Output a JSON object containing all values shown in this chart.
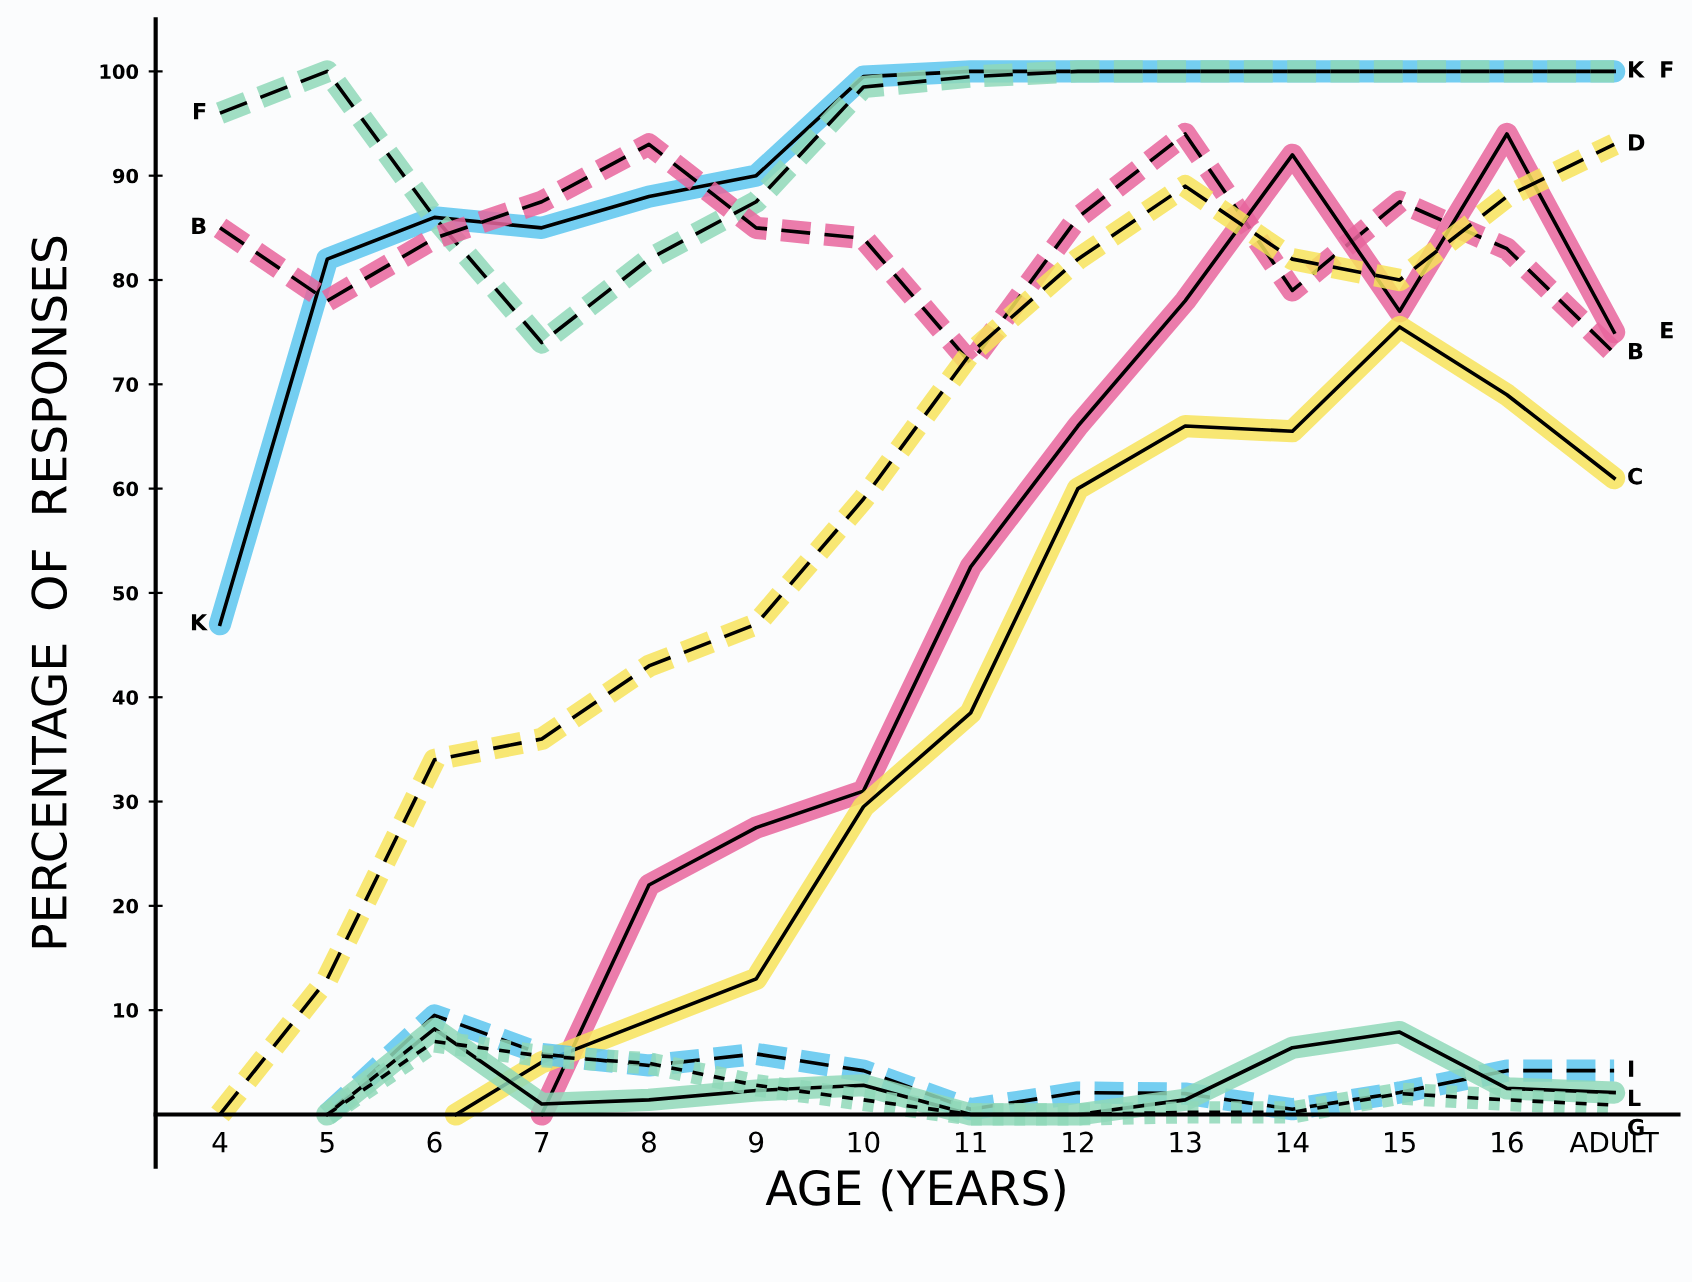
{
  "chart_data": {
    "type": "line",
    "xlabel": "AGE (YEARS)",
    "ylabel": "PERCENTAGE  OF  RESPONSES",
    "xlim": [
      3.4,
      17.6
    ],
    "ylim": [
      -5,
      105
    ],
    "xticks": [
      4,
      5,
      6,
      7,
      8,
      9,
      10,
      11,
      12,
      13,
      14,
      15,
      16,
      {
        "value": 17,
        "label": "ADULT"
      }
    ],
    "yticks": [
      10,
      20,
      30,
      40,
      50,
      60,
      70,
      80,
      90,
      100
    ],
    "grid": false,
    "legend": false,
    "marker": "none",
    "series": [
      {
        "name": "K",
        "color": "#5cc6ee",
        "line_style": "solid",
        "x": [
          4,
          5,
          6,
          7,
          8,
          9,
          10,
          11,
          12,
          13,
          14,
          15,
          16,
          17
        ],
        "values": [
          47,
          82,
          86,
          85,
          88,
          90,
          99.5,
          100,
          100,
          100,
          100,
          100,
          100,
          100
        ]
      },
      {
        "name": "F",
        "color": "#8fd8b8",
        "line_style": "dashed",
        "x": [
          4,
          5,
          6,
          7,
          8,
          9,
          10,
          11,
          12,
          13,
          14,
          15,
          16,
          17
        ],
        "values": [
          96,
          100,
          86,
          74,
          82,
          87.5,
          98.5,
          99.5,
          100,
          100,
          100,
          100,
          100,
          100
        ]
      },
      {
        "name": "B",
        "color": "#e8659c",
        "line_style": "dashed",
        "x": [
          4,
          5,
          6,
          7,
          8,
          9,
          10,
          11,
          12,
          13,
          14,
          15,
          16,
          17
        ],
        "values": [
          85,
          78,
          84,
          87.5,
          93,
          85,
          84,
          72,
          86,
          94,
          79,
          87.5,
          83,
          73
        ]
      },
      {
        "name": "E",
        "color": "#e8659c",
        "line_style": "solid",
        "x": [
          7,
          8,
          9,
          10,
          11,
          12,
          13,
          14,
          15,
          16,
          17
        ],
        "values": [
          0,
          22,
          27.5,
          31,
          52.5,
          66,
          78,
          92,
          77,
          94,
          75
        ]
      },
      {
        "name": "D",
        "color": "#f7e35a",
        "line_style": "dashed",
        "x": [
          4,
          5,
          6,
          7,
          8,
          9,
          10,
          11,
          12,
          13,
          14,
          15,
          16,
          17
        ],
        "values": [
          0,
          13,
          34,
          36,
          43,
          47,
          59,
          73,
          82,
          89,
          82,
          80,
          88,
          93
        ]
      },
      {
        "name": "C",
        "color": "#f7e35a",
        "line_style": "solid",
        "x": [
          6.2,
          7,
          8,
          9,
          10,
          11,
          12,
          13,
          14,
          15,
          16,
          17
        ],
        "values": [
          0,
          5,
          9,
          13,
          29.5,
          38.5,
          60,
          66,
          65.5,
          75.5,
          69,
          61
        ]
      },
      {
        "name": "I",
        "color": "#5cc6ee",
        "line_style": "dashed",
        "x": [
          5,
          6,
          7,
          8,
          9,
          10,
          11,
          12,
          13,
          14,
          15,
          16,
          17
        ],
        "values": [
          0,
          9.5,
          5.8,
          4.7,
          5.8,
          4.2,
          0.5,
          2.1,
          2,
          0.5,
          2.1,
          4.2,
          4.2
        ]
      },
      {
        "name": "L",
        "color": "#8fd8b8",
        "line_style": "solid",
        "x": [
          5,
          6,
          7,
          8,
          9,
          10,
          11,
          12,
          13,
          14,
          15,
          16,
          17
        ],
        "values": [
          0,
          8.2,
          1,
          1.4,
          2.3,
          2.8,
          0,
          0,
          1.4,
          6.4,
          7.9,
          2.5,
          2.1
        ]
      },
      {
        "name": "G",
        "color": "#8fd8b8",
        "line_style": "dotted",
        "x": [
          5,
          6,
          7,
          8,
          9,
          10,
          11,
          12,
          13,
          14,
          15,
          16,
          17
        ],
        "values": [
          0,
          7,
          5.6,
          4.9,
          2.8,
          1.4,
          0,
          0,
          0.2,
          0.2,
          2,
          1.4,
          0.9
        ]
      }
    ]
  }
}
